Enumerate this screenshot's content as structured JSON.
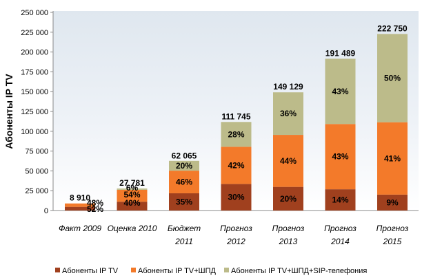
{
  "chart_data": {
    "type": "bar",
    "stacked": true,
    "ylabel": "Абоненты IP TV",
    "ylim": [
      0,
      250000
    ],
    "y_ticks": [
      "0",
      "25 000",
      "50 000",
      "75 000",
      "100 000",
      "125 000",
      "150 000",
      "175 000",
      "200 000",
      "225 000",
      "250 000"
    ],
    "y_tick_values": [
      0,
      25000,
      50000,
      75000,
      100000,
      125000,
      150000,
      175000,
      200000,
      225000,
      250000
    ],
    "grid": false,
    "legend_position": "bottom",
    "categories": [
      [
        "Факт 2009"
      ],
      [
        "Оценка 2010"
      ],
      [
        "Бюджет",
        "2011"
      ],
      [
        "Прогноз",
        "2012"
      ],
      [
        "Прогноз",
        "2013"
      ],
      [
        "Прогноз",
        "2014"
      ],
      [
        "Прогноз",
        "2015"
      ]
    ],
    "totals": [
      8910,
      27781,
      62065,
      111745,
      149129,
      191489,
      222750
    ],
    "total_labels": [
      "8 910",
      "27 781",
      "62 065",
      "111 745",
      "149 129",
      "191 489",
      "222 750"
    ],
    "series": [
      {
        "name": "Абоненты IP TV",
        "color": "#a0401e",
        "percents": [
          52,
          40,
          35,
          30,
          20,
          14,
          9
        ],
        "percent_labels": [
          "52%",
          "40%",
          "35%",
          "30%",
          "20%",
          "14%",
          "9%"
        ]
      },
      {
        "name": "Абоненты IP TV+ШПД",
        "color": "#f37a2a",
        "percents": [
          48,
          54,
          46,
          42,
          44,
          43,
          41
        ],
        "percent_labels": [
          "48%",
          "54%",
          "46%",
          "42%",
          "44%",
          "43%",
          "41%"
        ]
      },
      {
        "name": "Абоненты IP TV+ШПД+SIP-телефония",
        "color": "#bcbb8a",
        "percents": [
          0,
          6,
          20,
          28,
          36,
          43,
          50
        ],
        "percent_labels": [
          "",
          "6%",
          "20%",
          "28%",
          "36%",
          "43%",
          "50%"
        ]
      }
    ]
  }
}
